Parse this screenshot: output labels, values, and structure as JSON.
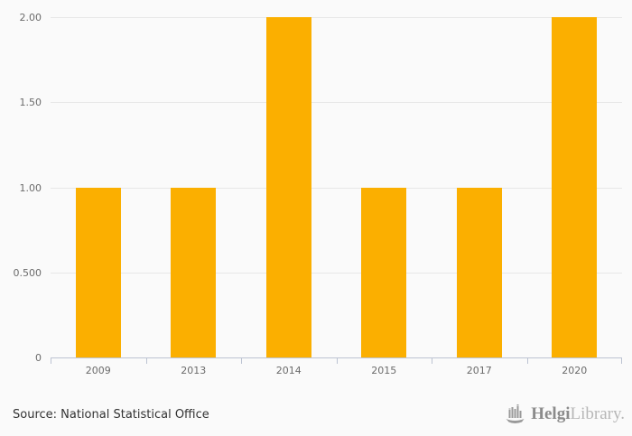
{
  "chart_data": {
    "type": "bar",
    "categories": [
      "2009",
      "2013",
      "2014",
      "2015",
      "2017",
      "2020"
    ],
    "values": [
      1,
      1,
      2,
      1,
      1,
      2
    ],
    "title": "",
    "xlabel": "",
    "ylabel": "",
    "ylim": [
      0,
      2
    ],
    "yticks": [
      0,
      0.5,
      1.0,
      1.5,
      2.0
    ],
    "ytick_labels": [
      "0",
      "0.500",
      "1.00",
      "1.50",
      "2.00"
    ],
    "grid": true,
    "legend": false,
    "bar_color": "#fbaf00"
  },
  "colors": {
    "background": "#fafafa",
    "gridline": "#e7e7e7",
    "axis": "#bcc3d2",
    "tick_label": "#6b6b6b",
    "bar": "#fbaf00",
    "source_text": "#333333",
    "logo_primary": "#8b8b8b",
    "logo_secondary": "#b7b7b7"
  },
  "footer": {
    "source_text": "Source: National Statistical Office",
    "logo": {
      "icon": "helgi-ship-bar-chart-icon",
      "brand_primary": "Helgi",
      "brand_secondary": "Library."
    }
  }
}
